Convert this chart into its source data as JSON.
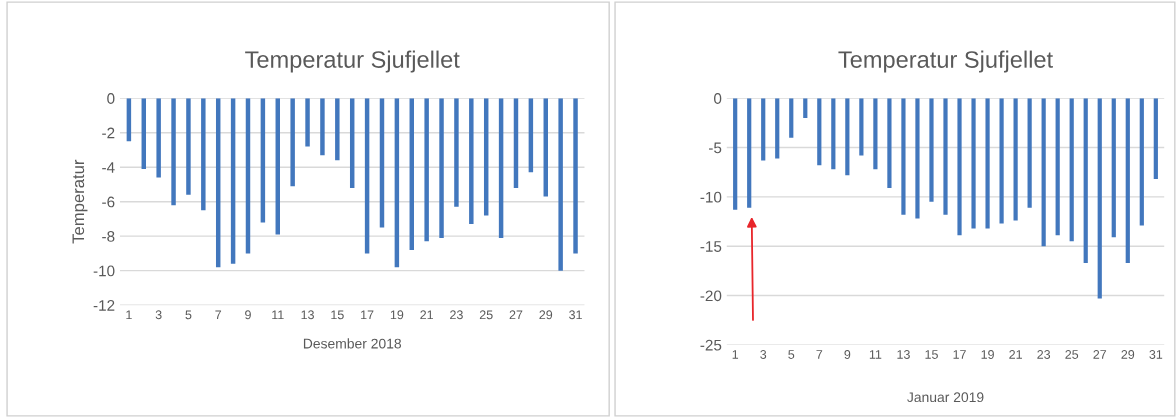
{
  "chart_data": [
    {
      "type": "bar",
      "title": "Temperatur Sjufjellet",
      "xlabel": "Desember 2018",
      "ylabel": "Temperatur",
      "categories": [
        "1",
        null,
        "3",
        null,
        "5",
        null,
        "7",
        null,
        "9",
        null,
        "11",
        null,
        "13",
        null,
        "15",
        null,
        "17",
        null,
        "19",
        null,
        "21",
        null,
        "23",
        null,
        "25",
        null,
        "27",
        null,
        "29",
        null,
        "31"
      ],
      "series": [
        {
          "color": "#4277bd",
          "values": [
            -2.5,
            -4.1,
            -4.6,
            -6.2,
            -5.6,
            -6.5,
            -9.8,
            -9.6,
            -9.0,
            -7.2,
            -7.9,
            -5.1,
            -2.8,
            -3.3,
            -3.6,
            -5.2,
            -9.0,
            -7.5,
            -9.8,
            -8.8,
            -8.3,
            -8.1,
            -6.3,
            -7.3,
            -6.8,
            -8.1,
            -5.2,
            -4.3,
            -5.7,
            -10.0,
            -9.0
          ]
        }
      ],
      "ylim": [
        -12,
        0
      ],
      "yticks": [
        -12,
        -10,
        -8,
        -6,
        -4,
        -2,
        0
      ],
      "grid": "y",
      "legend": false
    },
    {
      "type": "bar",
      "title": "Temperatur Sjufjellet",
      "xlabel": "Januar 2019",
      "categories": [
        "1",
        null,
        "3",
        null,
        "5",
        null,
        "7",
        null,
        "9",
        null,
        "11",
        null,
        "13",
        null,
        "15",
        null,
        "17",
        null,
        "19",
        null,
        "21",
        null,
        "23",
        null,
        "25",
        null,
        "27",
        null,
        "29",
        null,
        "31"
      ],
      "series": [
        {
          "color": "#4277bd",
          "values": [
            -11.3,
            -11.1,
            -6.3,
            -6.1,
            -4.0,
            -2.0,
            -6.8,
            -7.2,
            -7.8,
            -5.8,
            -7.2,
            -9.1,
            -11.8,
            -12.2,
            -10.5,
            -11.8,
            -13.9,
            -13.2,
            -13.2,
            -12.7,
            -12.4,
            -11.1,
            -15.0,
            -13.9,
            -14.5,
            -16.7,
            -20.3,
            -14.1,
            -16.7,
            -12.9,
            -8.2
          ]
        }
      ],
      "ylim": [
        -25,
        0
      ],
      "yticks": [
        -25,
        -20,
        -15,
        -10,
        -5,
        0
      ],
      "grid": "y",
      "legend": false
    }
  ]
}
